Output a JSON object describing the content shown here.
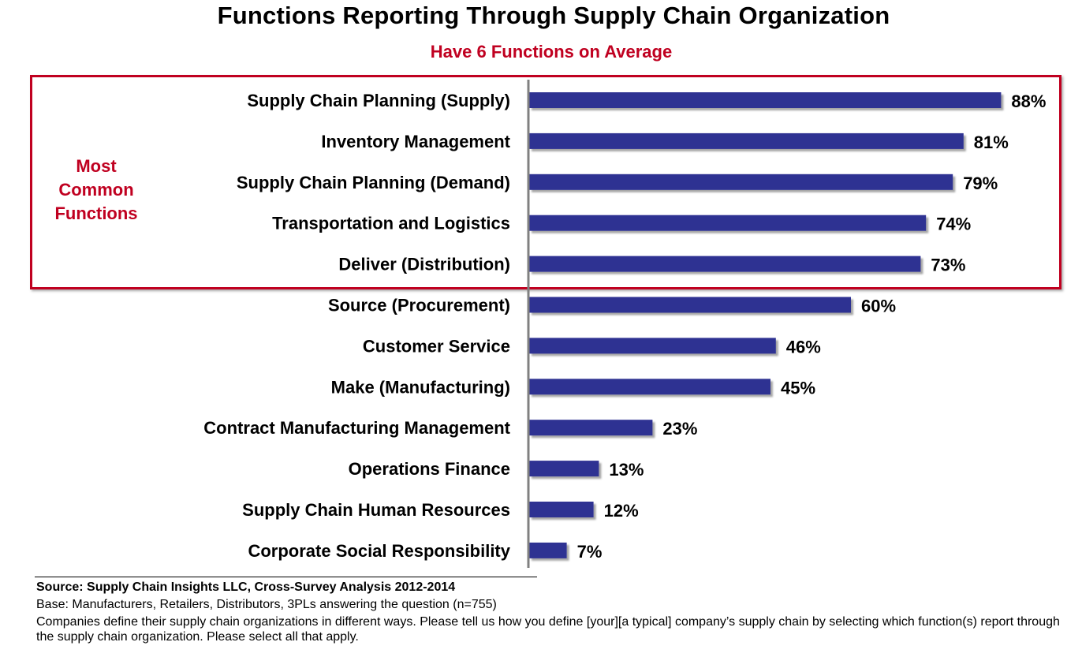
{
  "title": "Functions Reporting Through Supply Chain Organization",
  "subtitle": "Have 6 Functions on Average",
  "highlight": {
    "label_lines": [
      "Most",
      "Common",
      "Functions"
    ],
    "box_color": "#C00020"
  },
  "colors": {
    "bar": "#2E3192",
    "subtitle": "#C00020",
    "axis": "#808080"
  },
  "chart_data": {
    "type": "bar",
    "orientation": "horizontal",
    "title": "Functions Reporting Through Supply Chain Organization",
    "subtitle": "Have 6 Functions on Average",
    "xlabel": "",
    "ylabel": "",
    "xlim": [
      0,
      100
    ],
    "grid": false,
    "unit": "%",
    "categories": [
      "Supply Chain Planning (Supply)",
      "Inventory Management",
      "Supply Chain Planning (Demand)",
      "Transportation and Logistics",
      "Deliver (Distribution)",
      "Source (Procurement)",
      "Customer Service",
      "Make (Manufacturing)",
      "Contract Manufacturing Management",
      "Operations Finance",
      "Supply Chain Human Resources",
      "Corporate Social Responsibility"
    ],
    "values": [
      88,
      81,
      79,
      74,
      73,
      60,
      46,
      45,
      23,
      13,
      12,
      7
    ],
    "data_labels": [
      "88%",
      "81%",
      "79%",
      "74%",
      "73%",
      "60%",
      "46%",
      "45%",
      "23%",
      "13%",
      "12%",
      "7%"
    ]
  },
  "footer": {
    "source": "Source:  Supply Chain Insights LLC, Cross-Survey Analysis 2012-2014",
    "base": "Base:  Manufacturers, Retailers, Distributors, 3PLs answering the question (n=755)",
    "question": "Companies define their supply chain organizations in different ways.  Please tell us how you define [your][a typical] company’s supply chain by selecting which function(s) report through the supply chain organization.  Please select all that apply."
  }
}
